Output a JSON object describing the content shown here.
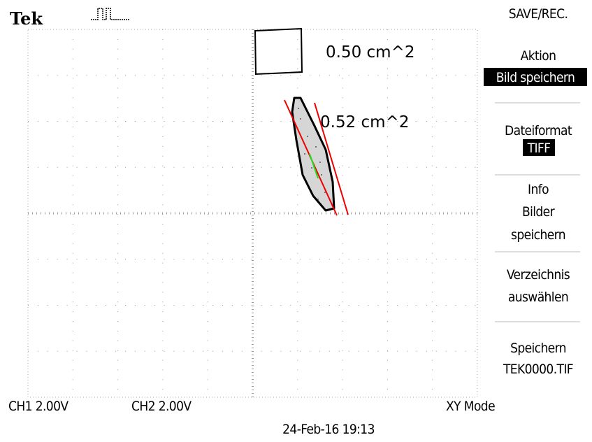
{
  "header": {
    "brand": "Tek"
  },
  "menu": {
    "title": "SAVE/REC.",
    "items": [
      {
        "lines": [
          "Aktion"
        ],
        "value": "Bild speichern"
      },
      {
        "lines": [
          "Dateiformat"
        ],
        "value": "TIFF"
      },
      {
        "lines": [
          "Info",
          "Bilder",
          "speichern"
        ]
      },
      {
        "lines": [
          "Verzeichnis",
          "auswählen"
        ]
      },
      {
        "lines": [
          "Speichern",
          "TEK0000.TIF"
        ]
      }
    ]
  },
  "screen": {
    "annotations": [
      "0.50 cm^2",
      "0.52 cm^2"
    ]
  },
  "status": {
    "ch1": "CH1 2.00V",
    "ch2": "CH2 2.00V",
    "mode": "XY Mode",
    "timestamp": "24-Feb-16 19:13"
  }
}
